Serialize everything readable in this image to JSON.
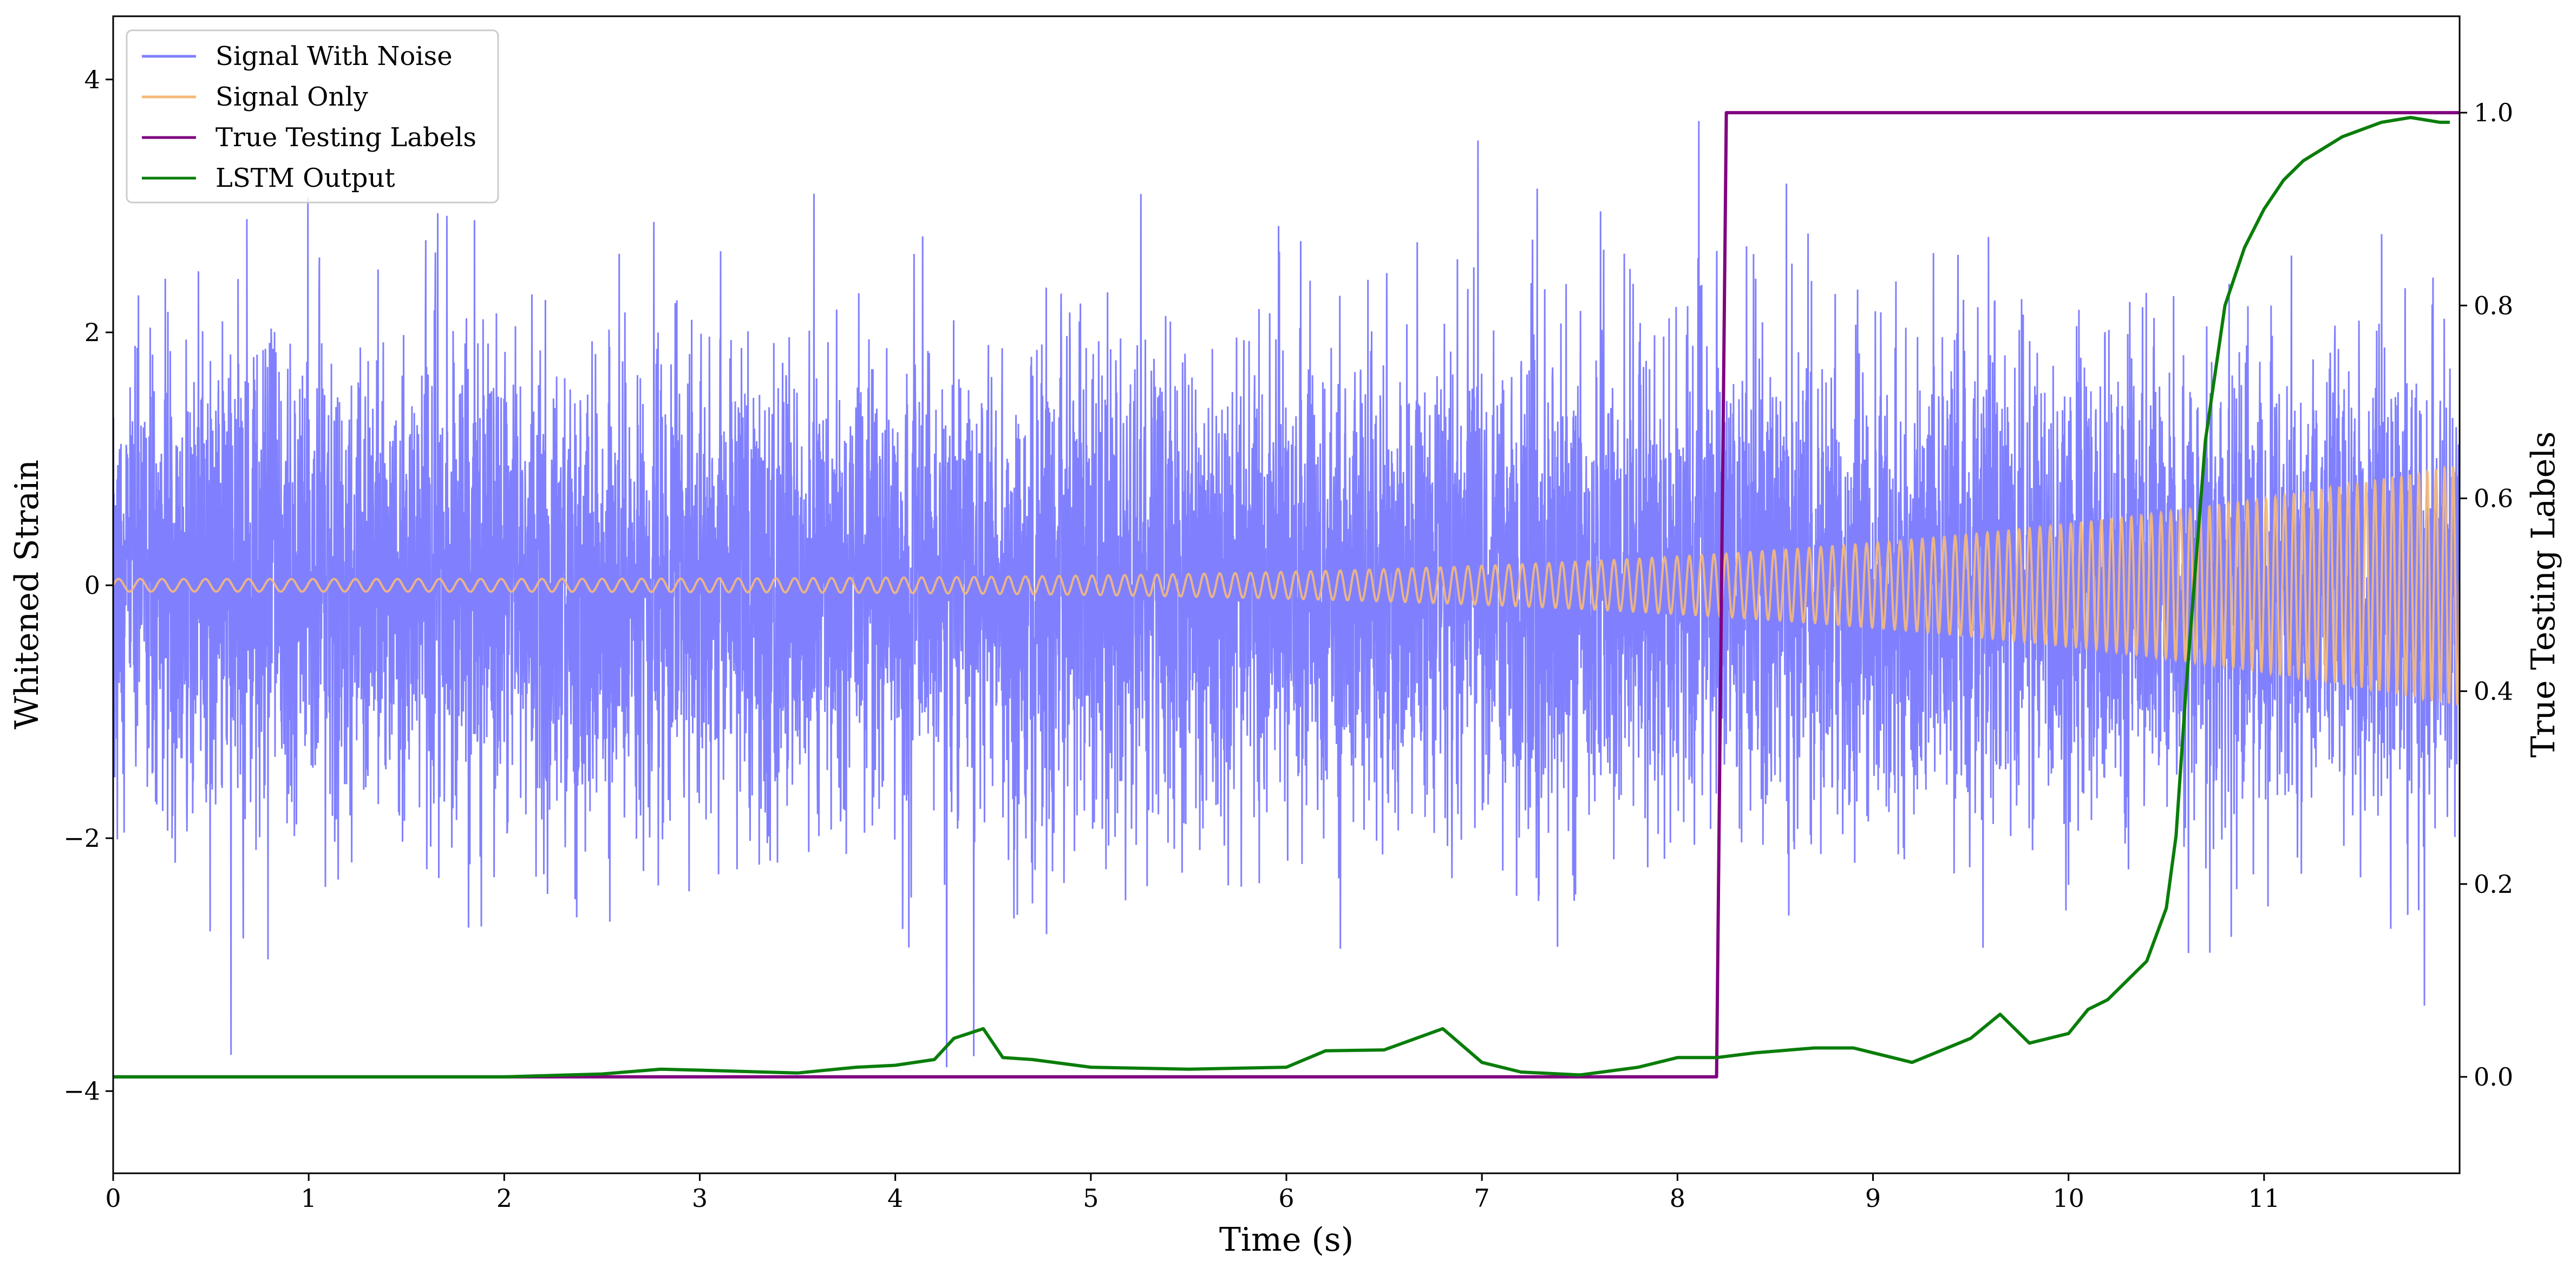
{
  "chart_data": {
    "type": "line",
    "xlabel": "Time (s)",
    "ylabel_left": "Whitened Strain",
    "ylabel_right": "True Testing Labels",
    "xlim": [
      0,
      12
    ],
    "ylim_left": [
      -4.65,
      4.5
    ],
    "ylim_right": [
      -0.1,
      1.1
    ],
    "x_ticks": [
      0,
      1,
      2,
      3,
      4,
      5,
      6,
      7,
      8,
      9,
      10,
      11
    ],
    "x_tick_labels": [
      "0",
      "1",
      "2",
      "3",
      "4",
      "5",
      "6",
      "7",
      "8",
      "9",
      "10",
      "11"
    ],
    "y_left_ticks": [
      -4,
      -2,
      0,
      2,
      4
    ],
    "y_left_tick_labels": [
      "−4",
      "−2",
      "0",
      "2",
      "4"
    ],
    "y_right_ticks": [
      0.0,
      0.2,
      0.4,
      0.6,
      0.8,
      1.0
    ],
    "y_right_tick_labels": [
      "0.0",
      "0.2",
      "0.4",
      "0.6",
      "0.8",
      "1.0"
    ],
    "grid": false,
    "legend_position": "top-left",
    "series": [
      {
        "name": "Signal With Noise",
        "axis": "left",
        "color": "#8080ff",
        "kind": "noise",
        "std": 1.0,
        "note_range": [
          -4.25,
          4.1
        ]
      },
      {
        "name": "Signal Only",
        "axis": "left",
        "color": "#f5b97a",
        "kind": "chirp",
        "amplitude_start": 0.05,
        "amplitude_end": 0.95,
        "cycles_per_second_start": 9,
        "cycles_per_second_end": 23
      },
      {
        "name": "True Testing Labels",
        "axis": "right",
        "color": "#800080",
        "kind": "step",
        "x": [
          0,
          8.2,
          8.25,
          12
        ],
        "y": [
          0,
          0,
          1,
          1
        ]
      },
      {
        "name": "LSTM Output",
        "axis": "right",
        "color": "#0a7d0a",
        "kind": "line",
        "x": [
          0,
          1,
          2,
          2.5,
          2.8,
          3.0,
          3.5,
          3.8,
          4.0,
          4.2,
          4.3,
          4.45,
          4.55,
          4.7,
          5.0,
          5.5,
          6.0,
          6.2,
          6.5,
          6.8,
          7.0,
          7.2,
          7.5,
          7.8,
          8.0,
          8.2,
          8.4,
          8.7,
          8.9,
          9.2,
          9.5,
          9.65,
          9.8,
          10.0,
          10.1,
          10.2,
          10.4,
          10.5,
          10.55,
          10.6,
          10.7,
          10.8,
          10.9,
          11.0,
          11.1,
          11.2,
          11.4,
          11.6,
          11.75,
          11.9,
          11.95
        ],
        "y": [
          0,
          0,
          0,
          0.003,
          0.008,
          0.007,
          0.004,
          0.01,
          0.012,
          0.018,
          0.04,
          0.05,
          0.02,
          0.018,
          0.01,
          0.008,
          0.01,
          0.027,
          0.028,
          0.05,
          0.015,
          0.005,
          0.002,
          0.01,
          0.02,
          0.02,
          0.025,
          0.03,
          0.03,
          0.015,
          0.04,
          0.065,
          0.035,
          0.045,
          0.07,
          0.08,
          0.12,
          0.175,
          0.25,
          0.4,
          0.66,
          0.8,
          0.86,
          0.9,
          0.93,
          0.95,
          0.975,
          0.99,
          0.995,
          0.99,
          0.99
        ]
      }
    ]
  }
}
